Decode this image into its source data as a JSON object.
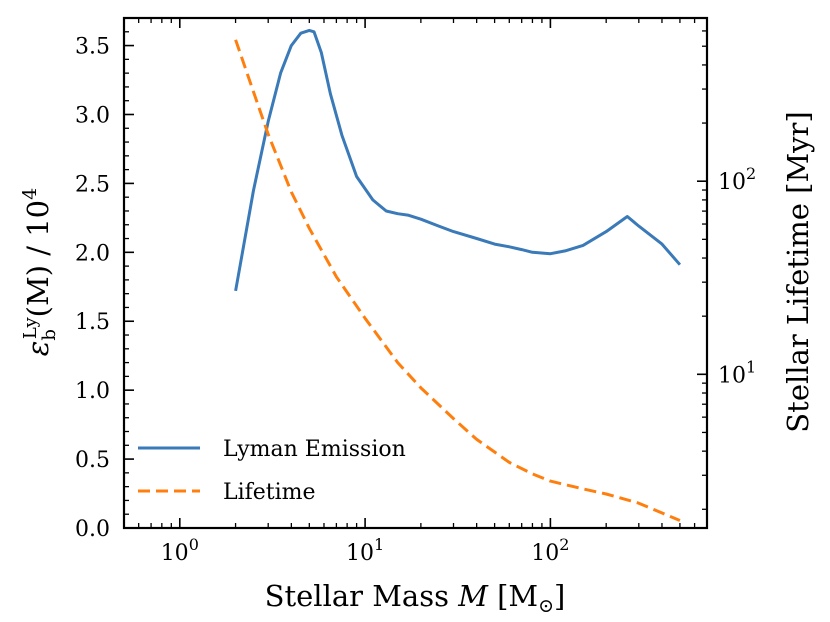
{
  "chart_data": {
    "type": "line",
    "x_axis": {
      "label_prefix": "Stellar Mass ",
      "label_var": "M",
      "label_unit_open": " [M",
      "label_unit_sub": "⊙",
      "label_unit_close": "]",
      "scale": "log",
      "range": [
        0.5,
        700
      ],
      "ticks": [
        {
          "value": 1,
          "base": "10",
          "exp": "0"
        },
        {
          "value": 10,
          "base": "10",
          "exp": "1"
        },
        {
          "value": 100,
          "base": "10",
          "exp": "2"
        }
      ]
    },
    "y_left": {
      "label_eps": "ε",
      "label_sub": "b",
      "label_sup": "Ly",
      "label_mid": "(M) / 10",
      "label_exp": "4",
      "scale": "linear",
      "range": [
        0,
        3.7
      ],
      "ticks": [
        "0.0",
        "0.5",
        "1.0",
        "1.5",
        "2.0",
        "2.5",
        "3.0",
        "3.5"
      ]
    },
    "y_right": {
      "label": "Stellar Lifetime [Myr]",
      "scale": "log",
      "range": [
        1.6,
        700
      ],
      "ticks": [
        {
          "value": 10,
          "base": "10",
          "exp": "1"
        },
        {
          "value": 100,
          "base": "10",
          "exp": "2"
        }
      ]
    },
    "series": [
      {
        "name": "Lyman Emission",
        "axis": "left",
        "color": "#3a7ab8",
        "style": "solid",
        "x": [
          2,
          2.5,
          3,
          3.5,
          4,
          4.5,
          5,
          5.3,
          5.8,
          6.5,
          7.5,
          9,
          11,
          13,
          15,
          17,
          20,
          25,
          30,
          40,
          50,
          60,
          70,
          80,
          100,
          120,
          150,
          200,
          260,
          300,
          400,
          500
        ],
        "y": [
          1.72,
          2.45,
          2.95,
          3.3,
          3.5,
          3.59,
          3.61,
          3.6,
          3.45,
          3.15,
          2.85,
          2.55,
          2.38,
          2.3,
          2.28,
          2.27,
          2.24,
          2.19,
          2.15,
          2.1,
          2.06,
          2.04,
          2.02,
          2.0,
          1.99,
          2.01,
          2.05,
          2.15,
          2.26,
          2.19,
          2.06,
          1.91
        ]
      },
      {
        "name": "Lifetime",
        "axis": "right",
        "color": "#ff7f0e",
        "style": "dashed",
        "x": [
          2,
          2.5,
          3,
          4,
          5,
          7,
          10,
          15,
          20,
          30,
          40,
          60,
          80,
          100,
          150,
          200,
          300,
          500
        ],
        "y": [
          540,
          290,
          175,
          88,
          57,
          32,
          19.5,
          11.5,
          8.5,
          5.9,
          4.6,
          3.5,
          3.05,
          2.8,
          2.55,
          2.4,
          2.15,
          1.75
        ]
      }
    ],
    "legend_position": "lower-left"
  }
}
